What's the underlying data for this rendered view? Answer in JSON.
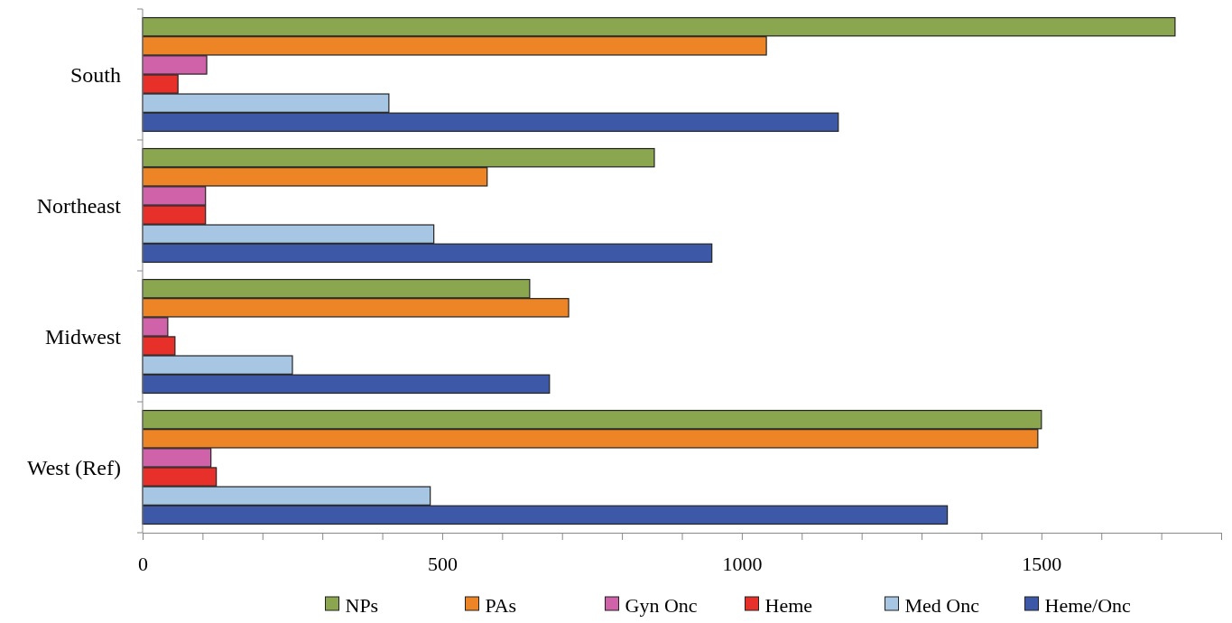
{
  "chart_data": {
    "type": "bar",
    "orientation": "horizontal",
    "categories": [
      "South",
      "Northeast",
      "Midwest",
      "West (Ref)"
    ],
    "series": [
      {
        "name": "NPs",
        "color": "#8aa64f",
        "values": [
          1723,
          854,
          646,
          1500
        ]
      },
      {
        "name": "PAs",
        "color": "#ed8526",
        "values": [
          1041,
          575,
          711,
          1494
        ]
      },
      {
        "name": "Gyn Onc",
        "color": "#cf62a9",
        "values": [
          107,
          105,
          42,
          114
        ]
      },
      {
        "name": "Heme",
        "color": "#e8302a",
        "values": [
          59,
          105,
          54,
          123
        ]
      },
      {
        "name": "Med Onc",
        "color": "#a7c6e4",
        "values": [
          411,
          486,
          250,
          480
        ]
      },
      {
        "name": "Heme/Onc",
        "color": "#3e58a8",
        "values": [
          1161,
          950,
          679,
          1343
        ]
      }
    ],
    "xlim": [
      0,
      1800
    ],
    "xticks": [
      0,
      {
        "value": 100,
        "label": null
      },
      {
        "value": 200,
        "label": null
      },
      {
        "value": 300,
        "label": null
      },
      {
        "value": 400,
        "label": null
      },
      500,
      {
        "value": 600,
        "label": null
      },
      {
        "value": 700,
        "label": null
      },
      {
        "value": 800,
        "label": null
      },
      {
        "value": 900,
        "label": null
      },
      1000,
      {
        "value": 1100,
        "label": null
      },
      {
        "value": 1200,
        "label": null
      },
      {
        "value": 1300,
        "label": null
      },
      {
        "value": 1400,
        "label": null
      },
      1500,
      {
        "value": 1600,
        "label": null
      },
      {
        "value": 1700,
        "label": null
      },
      {
        "value": 1800,
        "label": null
      }
    ],
    "grid": false,
    "legend": "bottom"
  }
}
